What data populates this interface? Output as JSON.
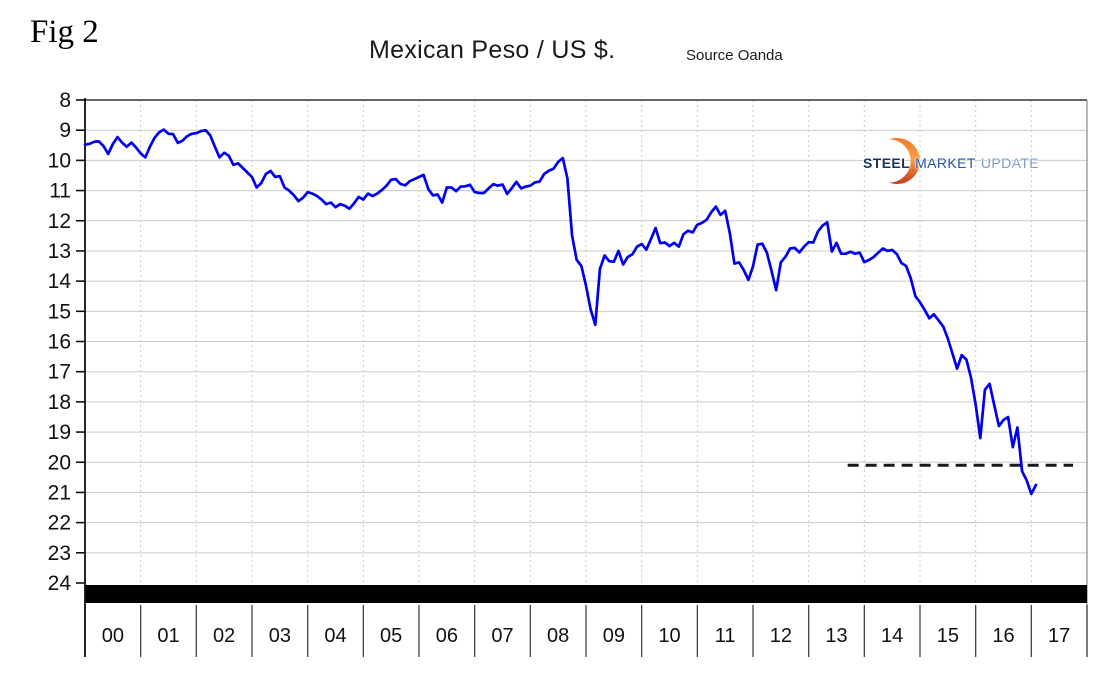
{
  "fig_label": "Fig 2",
  "header": {
    "title": "Mexican Peso / US $.",
    "source": "Source Oanda"
  },
  "logo": {
    "word1": "STEEL",
    "word2": "MARKET",
    "word3": "UPDATE",
    "word1_color": "#17355E",
    "word2_color": "#27549B",
    "word3_color": "#7D9CC4",
    "crescent_top_color": "#EE7A2A",
    "crescent_mid_color": "#F9A049",
    "crescent_bottom_color": "#C63A1D"
  },
  "chart_data": {
    "type": "line",
    "title": "Mexican Peso / US $.",
    "source": "Source Oanda",
    "x_range": [
      2000,
      2018
    ],
    "x_tick_labels": [
      "00",
      "01",
      "02",
      "03",
      "04",
      "05",
      "06",
      "07",
      "08",
      "09",
      "10",
      "11",
      "12",
      "13",
      "14",
      "15",
      "16",
      "17"
    ],
    "y_range": [
      8,
      24
    ],
    "y_ticks": [
      8,
      9,
      10,
      11,
      12,
      13,
      14,
      15,
      16,
      17,
      18,
      19,
      20,
      21,
      22,
      23,
      24
    ],
    "y_axis_inverted": true,
    "grid": true,
    "legend": false,
    "series": [
      {
        "name": "Mexican Peso per US Dollar",
        "color": "#0000EE",
        "x_start": 2000.0,
        "x_step_years": 0.083333,
        "values": [
          9.48,
          9.45,
          9.38,
          9.37,
          9.53,
          9.79,
          9.46,
          9.23,
          9.41,
          9.55,
          9.41,
          9.57,
          9.77,
          9.9,
          9.55,
          9.25,
          9.07,
          8.98,
          9.12,
          9.13,
          9.42,
          9.35,
          9.2,
          9.12,
          9.1,
          9.03,
          9.0,
          9.17,
          9.55,
          9.9,
          9.75,
          9.85,
          10.15,
          10.1,
          10.25,
          10.4,
          10.55,
          10.9,
          10.75,
          10.45,
          10.35,
          10.55,
          10.52,
          10.9,
          11.0,
          11.15,
          11.35,
          11.24,
          11.05,
          11.1,
          11.18,
          11.3,
          11.45,
          11.4,
          11.55,
          11.45,
          11.5,
          11.6,
          11.42,
          11.21,
          11.3,
          11.1,
          11.18,
          11.1,
          10.98,
          10.84,
          10.64,
          10.62,
          10.78,
          10.83,
          10.69,
          10.62,
          10.55,
          10.48,
          10.95,
          11.16,
          11.13,
          11.4,
          10.9,
          10.9,
          11.02,
          10.87,
          10.86,
          10.81,
          11.05,
          11.08,
          11.08,
          10.93,
          10.79,
          10.84,
          10.8,
          11.11,
          10.92,
          10.71,
          10.93,
          10.87,
          10.84,
          10.73,
          10.7,
          10.45,
          10.34,
          10.28,
          10.05,
          9.92,
          10.6,
          12.5,
          13.3,
          13.5,
          14.15,
          14.93,
          15.45,
          13.6,
          13.15,
          13.34,
          13.36,
          13.0,
          13.45,
          13.2,
          13.11,
          12.86,
          12.77,
          12.96,
          12.61,
          12.24,
          12.74,
          12.72,
          12.84,
          12.73,
          12.86,
          12.45,
          12.33,
          12.39,
          12.13,
          12.07,
          11.97,
          11.72,
          11.53,
          11.81,
          11.67,
          12.41,
          13.42,
          13.38,
          13.63,
          13.96,
          13.51,
          12.79,
          12.76,
          13.06,
          13.67,
          14.3,
          13.38,
          13.19,
          12.92,
          12.9,
          13.05,
          12.86,
          12.71,
          12.72,
          12.36,
          12.16,
          12.05,
          13.02,
          12.73,
          13.09,
          13.09,
          13.03,
          13.09,
          13.06,
          13.37,
          13.3,
          13.2,
          13.06,
          12.92,
          13.0,
          12.97,
          13.1,
          13.4,
          13.5,
          13.9,
          14.5,
          14.7,
          14.95,
          15.23,
          15.1,
          15.3,
          15.5,
          15.9,
          16.4,
          16.9,
          16.45,
          16.6,
          17.2,
          18.1,
          19.2,
          17.6,
          17.4,
          18.1,
          18.8,
          18.6,
          18.5,
          19.5,
          18.85,
          20.3,
          20.6,
          21.05,
          20.75
        ]
      }
    ],
    "support_line": {
      "value": 20.1,
      "x_start": 2013.7,
      "x_end": 2017.75,
      "style": "dashed",
      "color": "#1a1a1a"
    }
  },
  "colors": {
    "line": "#0000EE",
    "grid": "#c9c9c9",
    "axis": "#111111",
    "bottom_bar": "#000000"
  }
}
